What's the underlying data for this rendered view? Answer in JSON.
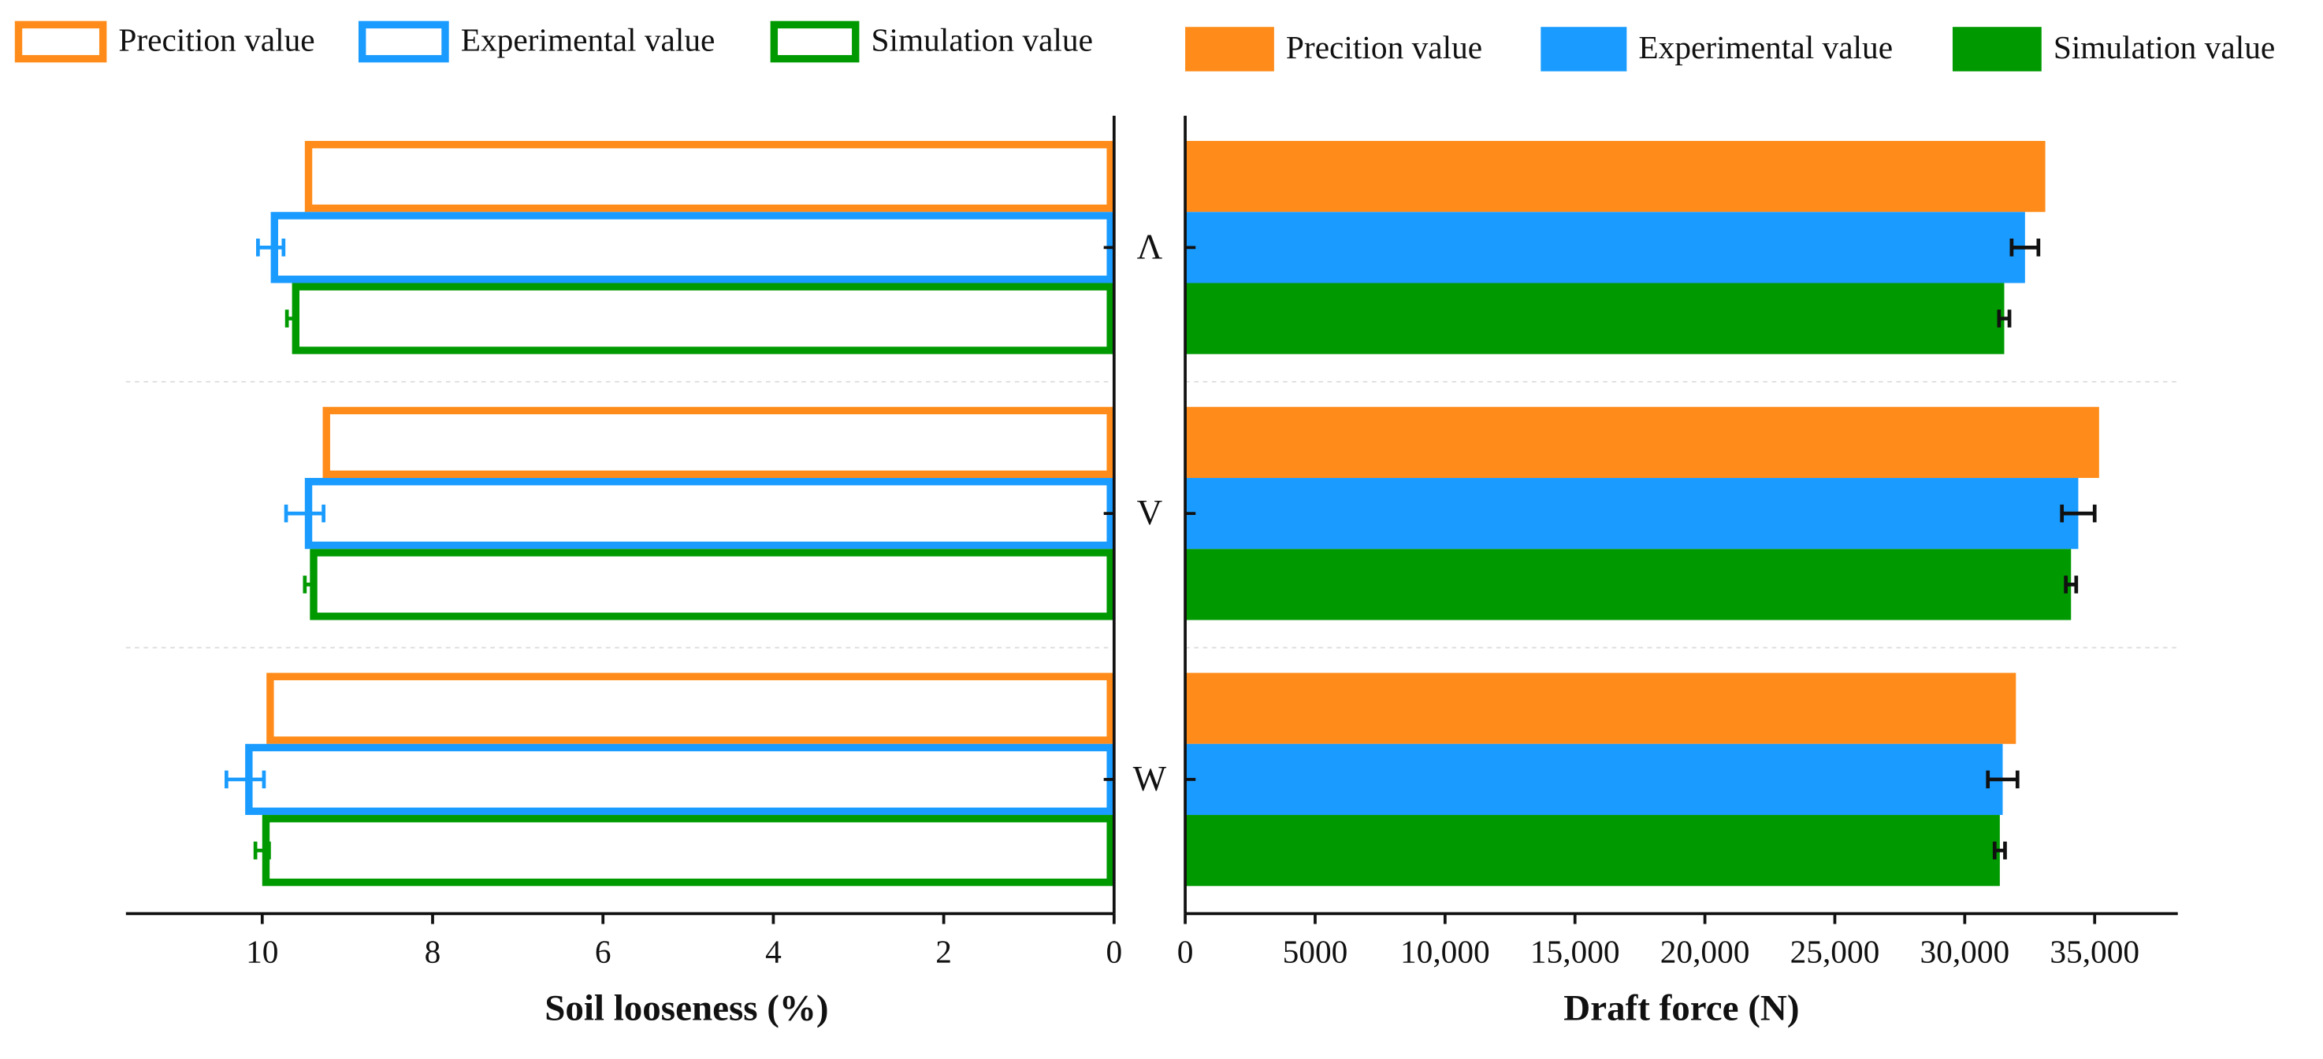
{
  "chart_data": [
    {
      "type": "bar",
      "orientation": "horizontal",
      "bar_style": "outline",
      "x_reversed": true,
      "xlabel": "Soil looseness (%)",
      "xlim": [
        0,
        11.6
      ],
      "xticks": [
        0,
        2,
        4,
        6,
        8,
        10
      ],
      "grid": true,
      "series": [
        {
          "name": "Precition value",
          "color": "#ff8c1a",
          "values": [
            9.5,
            9.29,
            9.95
          ]
        },
        {
          "name": "Experimental value",
          "color": "#1a9bff",
          "values": [
            9.9,
            9.5,
            10.2
          ],
          "errors": [
            0.15,
            0.22,
            0.22
          ]
        },
        {
          "name": "Simulation value",
          "color": "#009900",
          "values": [
            9.65,
            9.44,
            10.0
          ],
          "errors": [
            0.06,
            0.06,
            0.08
          ]
        }
      ]
    },
    {
      "type": "bar",
      "orientation": "horizontal",
      "bar_style": "filled",
      "x_reversed": false,
      "categories": [
        "Λ",
        "V",
        "W"
      ],
      "xlabel": "Draft force (N)",
      "xlim": [
        0,
        38200
      ],
      "xticks": [
        0,
        5000,
        {
          "value": 10000,
          "label": "10,000"
        },
        {
          "value": 15000,
          "label": "15,000"
        },
        {
          "value": 20000,
          "label": "20,000"
        },
        {
          "value": 25000,
          "label": "25,000"
        },
        {
          "value": 30000,
          "label": "30,000"
        },
        {
          "value": 35000,
          "label": "35,000"
        }
      ],
      "grid": true,
      "error_color": "#111111",
      "series": [
        {
          "name": "Precition value",
          "color": "#ff8c1a",
          "values": [
            33100,
            35170,
            31970
          ]
        },
        {
          "name": "Experimental value",
          "color": "#1a9bff",
          "values": [
            32320,
            34370,
            31460
          ],
          "errors": [
            515,
            630,
            570
          ]
        },
        {
          "name": "Simulation value",
          "color": "#009900",
          "values": [
            31520,
            34090,
            31350
          ],
          "errors": [
            200,
            200,
            200
          ]
        }
      ]
    }
  ]
}
